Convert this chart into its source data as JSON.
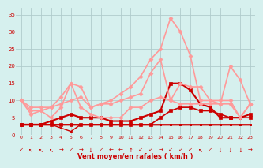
{
  "xlabel": "Vent moyen/en rafales ( km/h )",
  "bg_color": "#d6f0ee",
  "grid_color": "#b0cccc",
  "xlim": [
    -0.5,
    23.5
  ],
  "ylim": [
    0,
    37
  ],
  "yticks": [
    0,
    5,
    10,
    15,
    20,
    25,
    30,
    35
  ],
  "xticks": [
    0,
    1,
    2,
    3,
    4,
    5,
    6,
    7,
    8,
    9,
    10,
    11,
    12,
    13,
    14,
    15,
    16,
    17,
    18,
    19,
    20,
    21,
    22,
    23
  ],
  "lines": [
    {
      "comment": "flat dark red line at ~3",
      "x": [
        0,
        1,
        2,
        3,
        4,
        5,
        6,
        7,
        8,
        9,
        10,
        11,
        12,
        13,
        14,
        15,
        16,
        17,
        18,
        19,
        20,
        21,
        22,
        23
      ],
      "y": [
        3,
        3,
        3,
        3,
        3,
        3,
        3,
        3,
        3,
        3,
        3,
        3,
        3,
        3,
        3,
        3,
        3,
        3,
        3,
        3,
        3,
        3,
        3,
        3
      ],
      "color": "#cc0000",
      "lw": 1.0,
      "marker": null,
      "ms": 0
    },
    {
      "comment": "dark red slightly varied near 3",
      "x": [
        0,
        1,
        2,
        3,
        4,
        5,
        6,
        7,
        8,
        9,
        10,
        11,
        12,
        13,
        14,
        15,
        16,
        17,
        18,
        19,
        20,
        21,
        22,
        23
      ],
      "y": [
        3,
        3,
        3,
        3,
        3,
        3,
        3,
        3,
        3,
        3,
        3,
        3,
        3,
        3,
        3,
        3,
        3,
        3,
        3,
        3,
        3,
        3,
        3,
        3
      ],
      "color": "#cc0000",
      "lw": 1.0,
      "marker": "s",
      "ms": 2.0
    },
    {
      "comment": "dark red dips at 4-5",
      "x": [
        0,
        1,
        2,
        3,
        4,
        5,
        6,
        7,
        8,
        9,
        10,
        11,
        12,
        13,
        14,
        15,
        16,
        17,
        18,
        19,
        20,
        21,
        22,
        23
      ],
      "y": [
        3,
        3,
        3,
        3,
        2,
        1,
        3,
        3,
        3,
        3,
        3,
        3,
        3,
        3,
        3,
        3,
        3,
        3,
        3,
        3,
        3,
        3,
        3,
        3
      ],
      "color": "#cc0000",
      "lw": 1.0,
      "marker": "s",
      "ms": 2.0
    },
    {
      "comment": "dark red rises to ~8 at 16-17",
      "x": [
        0,
        1,
        2,
        3,
        4,
        5,
        6,
        7,
        8,
        9,
        10,
        11,
        12,
        13,
        14,
        15,
        16,
        17,
        18,
        19,
        20,
        21,
        22,
        23
      ],
      "y": [
        3,
        3,
        3,
        3,
        3,
        3,
        3,
        3,
        3,
        3,
        3,
        3,
        3,
        3,
        5,
        7,
        8,
        8,
        7,
        7,
        6,
        5,
        5,
        5
      ],
      "color": "#cc0000",
      "lw": 1.2,
      "marker": "s",
      "ms": 2.5
    },
    {
      "comment": "dark red peaks at 15-16",
      "x": [
        0,
        1,
        2,
        3,
        4,
        5,
        6,
        7,
        8,
        9,
        10,
        11,
        12,
        13,
        14,
        15,
        16,
        17,
        18,
        19,
        20,
        21,
        22,
        23
      ],
      "y": [
        3,
        3,
        3,
        4,
        5,
        6,
        5,
        5,
        5,
        4,
        4,
        4,
        5,
        6,
        7,
        15,
        15,
        13,
        9,
        8,
        5,
        5,
        5,
        6
      ],
      "color": "#cc0000",
      "lw": 1.5,
      "marker": "s",
      "ms": 3.0
    },
    {
      "comment": "light pink high line, starts ~10, peak 34 at x=15",
      "x": [
        0,
        1,
        2,
        3,
        4,
        5,
        6,
        7,
        8,
        9,
        10,
        11,
        12,
        13,
        14,
        15,
        16,
        17,
        18,
        19,
        20,
        21,
        22,
        23
      ],
      "y": [
        10,
        8,
        8,
        8,
        9,
        10,
        11,
        8,
        9,
        10,
        12,
        14,
        17,
        22,
        25,
        34,
        30,
        23,
        10,
        10,
        9,
        9,
        5,
        9
      ],
      "color": "#ff9999",
      "lw": 1.2,
      "marker": "D",
      "ms": 2.5
    },
    {
      "comment": "light pink medium, peak ~22 at x=14",
      "x": [
        0,
        1,
        2,
        3,
        4,
        5,
        6,
        7,
        8,
        9,
        10,
        11,
        12,
        13,
        14,
        15,
        16,
        17,
        18,
        19,
        20,
        21,
        22,
        23
      ],
      "y": [
        10,
        7,
        7,
        8,
        11,
        15,
        14,
        8,
        9,
        9,
        10,
        11,
        12,
        18,
        22,
        10,
        15,
        14,
        14,
        10,
        10,
        10,
        5,
        9
      ],
      "color": "#ff9999",
      "lw": 1.2,
      "marker": "D",
      "ms": 2.5
    },
    {
      "comment": "light pink lower line, peaks ~20 at x=21, starts ~10",
      "x": [
        0,
        1,
        2,
        3,
        4,
        5,
        6,
        7,
        8,
        9,
        10,
        11,
        12,
        13,
        14,
        15,
        16,
        17,
        18,
        19,
        20,
        21,
        22,
        23
      ],
      "y": [
        10,
        6,
        7,
        5,
        8,
        15,
        8,
        6,
        5,
        5,
        5,
        8,
        8,
        10,
        11,
        10,
        9,
        9,
        9,
        9,
        9,
        20,
        16,
        9
      ],
      "color": "#ff9999",
      "lw": 1.2,
      "marker": "D",
      "ms": 2.5
    }
  ],
  "wind_symbols": [
    "↙",
    "↖",
    "↖",
    "↖",
    "→",
    "↙",
    "→",
    "↓",
    "↙",
    "←",
    "←",
    "↑",
    "↙",
    "↙",
    "→",
    "↙",
    "↙",
    "↙",
    "↖",
    "↙",
    "↓",
    "↓",
    "↓",
    "→"
  ]
}
